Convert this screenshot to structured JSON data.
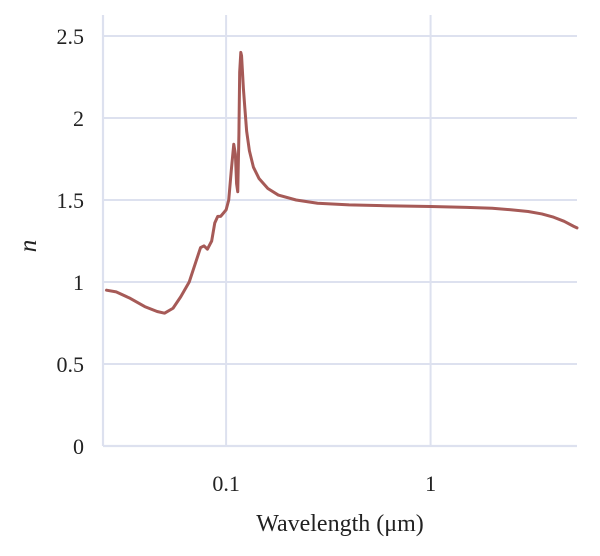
{
  "chart_data": {
    "type": "line",
    "title": "",
    "xlabel": "Wavelength (μm)",
    "ylabel": "n",
    "x_scale": "log",
    "xlim": [
      0.025,
      5.2
    ],
    "ylim": [
      0,
      2.5
    ],
    "x_ticks": [
      {
        "value": 0.1,
        "label": "0.1"
      },
      {
        "value": 1,
        "label": "1"
      }
    ],
    "y_ticks": [
      {
        "value": 0,
        "label": "0"
      },
      {
        "value": 0.5,
        "label": "0.5"
      },
      {
        "value": 1,
        "label": "1"
      },
      {
        "value": 1.5,
        "label": "1.5"
      },
      {
        "value": 2,
        "label": "2"
      },
      {
        "value": 2.5,
        "label": "2.5"
      }
    ],
    "grid": "horizontal and vertical at major ticks",
    "series": [
      {
        "color": "#a65a57",
        "x": [
          0.026,
          0.029,
          0.034,
          0.04,
          0.046,
          0.05,
          0.055,
          0.06,
          0.066,
          0.071,
          0.075,
          0.078,
          0.081,
          0.085,
          0.088,
          0.091,
          0.094,
          0.097,
          0.1,
          0.103,
          0.106,
          0.109,
          0.111,
          0.1125,
          0.114,
          0.1155,
          0.1165,
          0.118,
          0.119,
          0.12,
          0.1215,
          0.1235,
          0.126,
          0.13,
          0.136,
          0.145,
          0.16,
          0.18,
          0.22,
          0.28,
          0.4,
          0.6,
          1.0,
          1.5,
          2.0,
          2.5,
          3.0,
          3.5,
          4.0,
          4.5,
          5.0,
          5.2
        ],
        "y": [
          0.95,
          0.94,
          0.9,
          0.85,
          0.82,
          0.81,
          0.84,
          0.91,
          1.0,
          1.12,
          1.21,
          1.22,
          1.2,
          1.25,
          1.36,
          1.4,
          1.4,
          1.42,
          1.44,
          1.5,
          1.68,
          1.84,
          1.78,
          1.6,
          1.55,
          1.9,
          2.28,
          2.4,
          2.38,
          2.3,
          2.18,
          2.06,
          1.92,
          1.8,
          1.7,
          1.63,
          1.57,
          1.53,
          1.5,
          1.48,
          1.47,
          1.465,
          1.46,
          1.455,
          1.45,
          1.44,
          1.43,
          1.415,
          1.395,
          1.37,
          1.34,
          1.33
        ]
      }
    ]
  }
}
